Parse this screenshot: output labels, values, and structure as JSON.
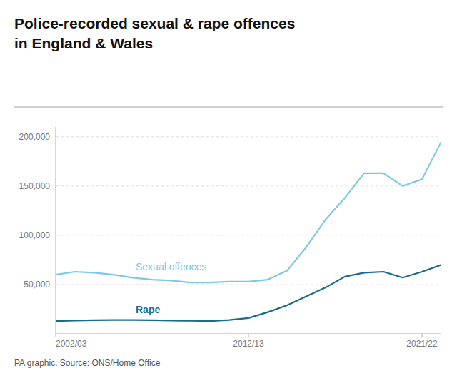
{
  "chart_data": {
    "type": "line",
    "title": "Police-recorded sexual & rape offences",
    "subtitle": "in England & Wales",
    "annotations": [
      "PA graphic. Source: ONS/Home Office"
    ],
    "x": [
      2002,
      2003,
      2004,
      2005,
      2006,
      2007,
      2008,
      2009,
      2010,
      2011,
      2012,
      2013,
      2014,
      2015,
      2016,
      2017,
      2018,
      2019,
      2020,
      2021,
      2022
    ],
    "series": [
      {
        "name": "Sexual offences",
        "color": "#7ec8e3",
        "values": [
          60000,
          63000,
          62000,
          60000,
          57000,
          55000,
          54000,
          52000,
          52000,
          53000,
          53000,
          55000,
          64000,
          88000,
          116000,
          138000,
          163000,
          163000,
          150000,
          157000,
          195000
        ]
      },
      {
        "name": "Rape",
        "color": "#1a6b8a",
        "values": [
          13000,
          13500,
          13800,
          14000,
          14000,
          13800,
          13500,
          13200,
          13000,
          14000,
          16000,
          22000,
          29000,
          38000,
          47000,
          58000,
          62000,
          63000,
          57000,
          63000,
          70000
        ]
      }
    ],
    "xlim": [
      2002,
      2022
    ],
    "xticks": [
      {
        "value": 2002,
        "label": "2002/03"
      },
      {
        "value": 2012,
        "label": "2012/13"
      },
      {
        "value": 2021,
        "label": "2021/22"
      }
    ],
    "ylim": [
      0,
      210000
    ],
    "yticks": [
      {
        "value": 50000,
        "label": "50,000"
      },
      {
        "value": 100000,
        "label": "100,000"
      },
      {
        "value": 150000,
        "label": "150,000"
      },
      {
        "value": 200000,
        "label": "200,000"
      }
    ],
    "grid": true
  }
}
